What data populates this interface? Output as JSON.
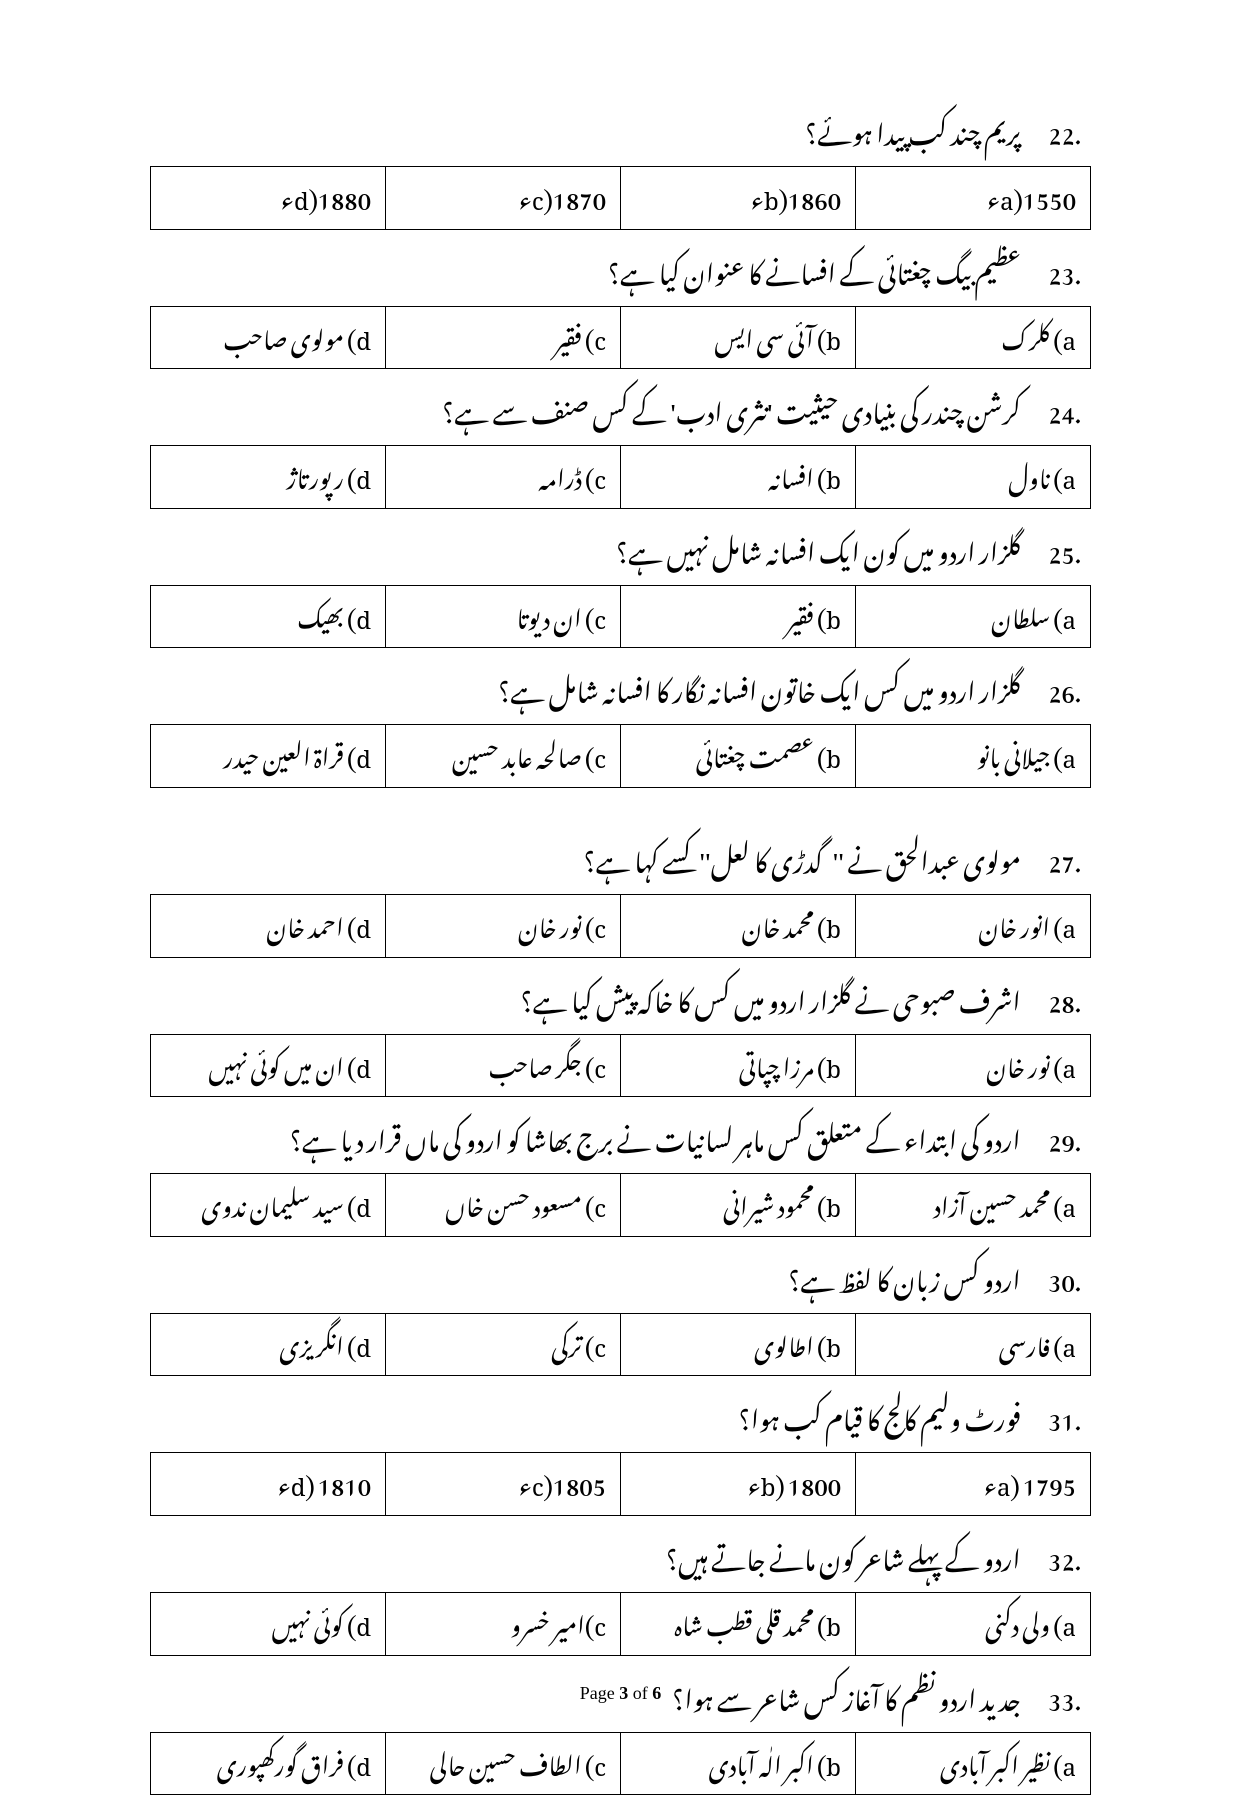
{
  "questions": [
    {
      "num": ".22",
      "text": "پریم چند کب پیدا ہوئے؟",
      "opts": {
        "a": "a)1550ء",
        "b": "b)1860ء",
        "c": "c)1870ء",
        "d": "d)1880ء"
      }
    },
    {
      "num": ".23",
      "text": "عظیم بیگ چغتائی کے افسانے کا عنوان کیا ہے؟",
      "opts": {
        "a": "a) کلرک",
        "b": "b) آئی سی ایس",
        "c": "c) فقیر",
        "d": "d) مولوی صاحب"
      }
    },
    {
      "num": ".24",
      "text": "کرشن چندر کی بنیادی حیثیت 'نثری ادب' کے کس صنف سے ہے؟",
      "opts": {
        "a": "a) ناول",
        "b": "b) افسانہ",
        "c": "c) ڈرامہ",
        "d": "d) رپورتاژ"
      }
    },
    {
      "num": ".25",
      "text": "گلزار اردو میں کون ایک افسانہ شامل نہیں ہے؟",
      "opts": {
        "a": "a) سلطان",
        "b": "b) فقیر",
        "c": "c) ان دیوتا",
        "d": "d) بھیک"
      }
    },
    {
      "num": ".26",
      "text": "گلزار اردو میں کس ایک خاتون افسانہ نگار کا افسانہ شامل ہے؟",
      "opts": {
        "a": "a) جیلانی بانو",
        "b": "b) عصمت چغتائی",
        "c": "c) صالحہ عابد حسین",
        "d": "d) قراۃ العین حیدر"
      }
    },
    {
      "num": ".27",
      "text": "مولوی عبدالحق نے ''گدڑی کا لعل'' کسے کہا ہے؟",
      "opts": {
        "a": "a) انور خان",
        "b": "b) محمد خان",
        "c": "c) نور خان",
        "d": "d) احمد خان"
      },
      "spaceBefore": true
    },
    {
      "num": ".28",
      "text": "اشرف صبوحی نے گلزار اردو میں کس کا خاکہ پیش کیا ہے؟",
      "opts": {
        "a": "a) نور خان",
        "b": "b) مرزا چپاتی",
        "c": "c) جگر صاحب",
        "d": "d) ان میں کوئی نہیں"
      }
    },
    {
      "num": ".29",
      "text": "اردو کی ابتداء کے متعلق کس ماہر لسانیات نے برج بھاشا کو اردو کی ماں قرار دیا ہے؟",
      "opts": {
        "a": "a) محمد حسین آزاد",
        "b": "b) محمود شیرانی",
        "c": "c) مسعود حسن خاں",
        "d": "d) سید سلیمان ندوی"
      }
    },
    {
      "num": ".30",
      "text": "اردو کس زبان کا لفظ ہے؟",
      "opts": {
        "a": "a) فارسی",
        "b": "b) اطالوی",
        "c": "c) ترکی",
        "d": "d) انگریزی"
      }
    },
    {
      "num": ".31",
      "text": "فورٹ ولیم کالج کا قیام کب ہوا؟",
      "opts": {
        "a": "a) 1795ء",
        "b": "b) 1800ء",
        "c": "c)1805ء",
        "d": "d) 1810ء"
      }
    },
    {
      "num": ".32",
      "text": "اردو کے پہلے شاعر کون مانے جاتے ہیں؟",
      "opts": {
        "a": "a) ولی دکنی",
        "b": "b) محمد قلی قطب شاہ",
        "c": "c)امیر خسرو",
        "d": "d) کوئی نہیں"
      }
    },
    {
      "num": ".33",
      "text": "جدید اردو نظم کا آغاز کس شاعر سے ہوا؟",
      "opts": {
        "a": "a) نظیر اکبر آبادی",
        "b": "b) اکبر الٰہ آبادی",
        "c": "c) الطاف حسین حالی",
        "d": "d) فراق گورکھپوری"
      }
    }
  ],
  "footer": {
    "prefix": "Page ",
    "current": "3",
    "of": " of ",
    "total": "6"
  }
}
